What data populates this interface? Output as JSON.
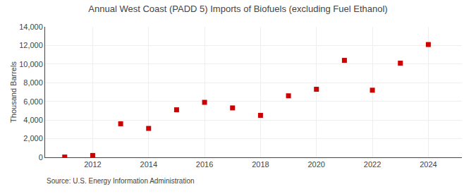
{
  "chart_data": {
    "type": "scatter",
    "title": "Annual West Coast (PADD 5) Imports of Biofuels (excluding Fuel Ethanol)",
    "ylabel": "Thousand Barrels",
    "annotations": [
      "Source: U.S. Energy Information Administration"
    ],
    "x": [
      2011,
      2012,
      2013,
      2014,
      2015,
      2016,
      2017,
      2018,
      2019,
      2020,
      2021,
      2022,
      2023,
      2024
    ],
    "values": [
      30,
      200,
      3600,
      3100,
      5100,
      5900,
      5300,
      4500,
      6600,
      7300,
      10400,
      7200,
      10100,
      12100
    ],
    "color": "#cc0000",
    "marker": "square",
    "xlim": [
      2010.3,
      2025.2
    ],
    "xticks": [
      2012,
      2014,
      2016,
      2018,
      2020,
      2022,
      2024
    ],
    "ylim": [
      0,
      14000
    ],
    "yticks": [
      0,
      {
        "value": 2000,
        "label": "2,000"
      },
      {
        "value": 4000,
        "label": "4,000"
      },
      {
        "value": 6000,
        "label": "6,000"
      },
      {
        "value": 8000,
        "label": "8,000"
      },
      {
        "value": 10000,
        "label": "10,000"
      },
      {
        "value": 12000,
        "label": "12,000"
      },
      {
        "value": 14000,
        "label": "14,000"
      }
    ],
    "grid": true
  }
}
